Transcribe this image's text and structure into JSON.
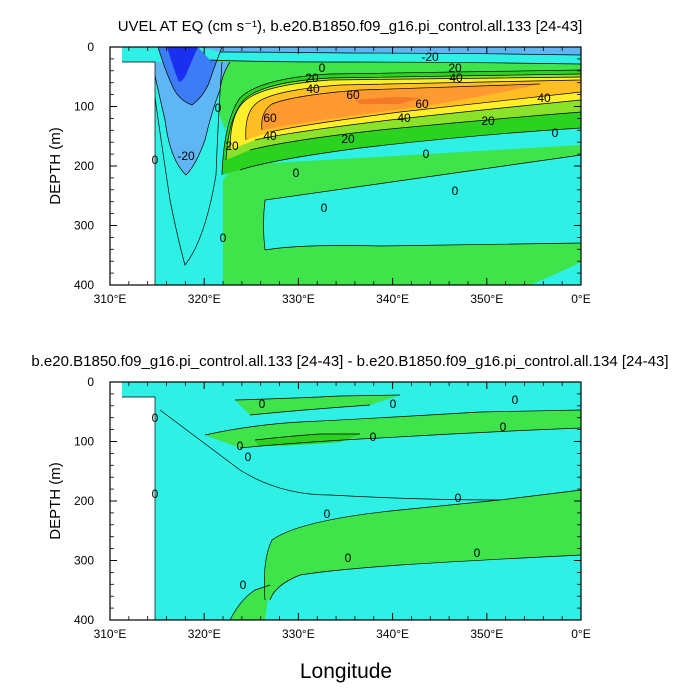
{
  "colors": {
    "c_m60": "#1a2ff0",
    "c_m40": "#3c7cf5",
    "c_m20": "#5fb6f5",
    "c_0": "#2ef0e4",
    "c_p0": "#3fe34a",
    "c_p20": "#2bd320",
    "c_p40": "#8ae22b",
    "c_p60": "#ffee2a",
    "c_p80": "#ffbf24",
    "c_p100": "#ff9a30",
    "c_p120": "#f57a28",
    "ocean_default": "#2ef0e4",
    "land": "#ffffff"
  },
  "chart_data": [
    {
      "type": "heatmap",
      "title": "UVEL AT EQ (cm s⁻¹), b.e20.B1850.f09_g16.pi_control.all.133 [24-43]",
      "xlabel": "",
      "ylabel": "DEPTH (m)",
      "x_ticks": [
        "310°E",
        "320°E",
        "330°E",
        "340°E",
        "350°E",
        "0°E"
      ],
      "y_ticks": [
        "0",
        "100",
        "200",
        "300",
        "400"
      ],
      "xlim": [
        310,
        360
      ],
      "ylim": [
        400,
        0
      ],
      "contour_labels": [
        "-20",
        "-20",
        "20",
        "40",
        "60",
        "60",
        "40",
        "20",
        "20",
        "40",
        "60",
        "40",
        "20",
        "0",
        "0",
        "0",
        "0",
        "0",
        "0",
        "0",
        "0",
        "0",
        "20",
        "40"
      ],
      "zero_contour_labels": [
        "0",
        "0",
        "0",
        "0",
        "0",
        "0",
        "0"
      ],
      "fields": {
        "undercurrent_core_max": 60,
        "surface_westward_min": -20
      }
    },
    {
      "type": "heatmap",
      "title": "b.e20.B1850.f09_g16.pi_control.all.133 [24-43] - b.e20.B1850.f09_g16.pi_control.all.134 [24-43]",
      "xlabel": "Longitude",
      "ylabel": "DEPTH (m)",
      "x_ticks": [
        "310°E",
        "320°E",
        "330°E",
        "340°E",
        "350°E",
        "0°E"
      ],
      "y_ticks": [
        "0",
        "100",
        "200",
        "300",
        "400"
      ],
      "xlim": [
        310,
        360
      ],
      "ylim": [
        400,
        0
      ],
      "zero_contour_labels": [
        "0",
        "0",
        "0",
        "0",
        "0",
        "0",
        "0",
        "0",
        "0",
        "0",
        "0",
        "0",
        "0",
        "0"
      ]
    }
  ],
  "labels": {
    "top_title": "UVEL AT EQ (cm s⁻¹), b.e20.B1850.f09_g16.pi_control.all.133 [24-43]",
    "bottom_title": "b.e20.B1850.f09_g16.pi_control.all.133 [24-43] - b.e20.B1850.f09_g16.pi_control.all.134 [24-43]",
    "ylabel": "DEPTH (m)",
    "xlabel": "Longitude"
  }
}
